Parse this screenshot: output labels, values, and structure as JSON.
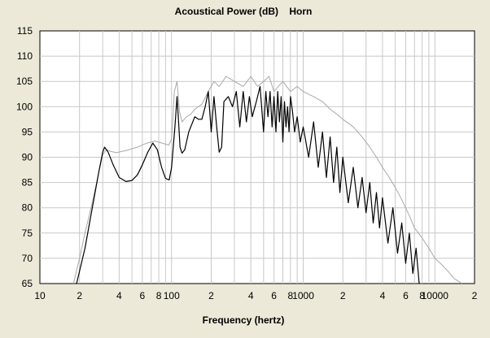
{
  "chart_data": {
    "type": "line",
    "title": "Acoustical Power (dB)    Horn",
    "xlabel": "Frequency (hertz)",
    "ylabel": "",
    "x_scale": "log",
    "xlim": [
      10,
      20000
    ],
    "ylim": [
      65,
      115
    ],
    "grid": true,
    "legend": "none",
    "y_ticks": [
      65,
      70,
      75,
      80,
      85,
      90,
      95,
      100,
      105,
      110,
      115
    ],
    "x_tick_values": [
      10,
      20,
      40,
      60,
      80,
      100,
      200,
      400,
      600,
      800,
      1000,
      2000,
      4000,
      6000,
      8000,
      10000,
      20000
    ],
    "x_tick_labels": [
      "10",
      "2",
      "4",
      "6",
      "8",
      "100",
      "2",
      "4",
      "6",
      "8",
      "1000",
      "2",
      "4",
      "6",
      "8",
      "10000",
      "2"
    ],
    "colors": {
      "background": "#ece9d8",
      "plot": "#ffffff",
      "grid": "#c8c8c8",
      "series_primary": "#000000",
      "series_secondary": "#a8a8a8"
    },
    "series": [
      {
        "role": "primary",
        "color": "#000000",
        "x": [
          19,
          22,
          25,
          28,
          30,
          31,
          33,
          36,
          40,
          45,
          50,
          55,
          60,
          66,
          72,
          78,
          84,
          90,
          96,
          100,
          106,
          110,
          113,
          116,
          120,
          126,
          135,
          150,
          160,
          170,
          180,
          190,
          200,
          210,
          220,
          230,
          240,
          250,
          270,
          290,
          310,
          330,
          350,
          370,
          390,
          410,
          440,
          470,
          500,
          520,
          540,
          560,
          580,
          600,
          620,
          640,
          660,
          680,
          700,
          720,
          740,
          760,
          780,
          800,
          830,
          860,
          900,
          950,
          1000,
          1100,
          1200,
          1300,
          1400,
          1500,
          1600,
          1700,
          1800,
          1900,
          2000,
          2200,
          2400,
          2600,
          2800,
          3000,
          3200,
          3400,
          3600,
          3800,
          4000,
          4400,
          4800,
          5200,
          5600,
          6000,
          6400,
          6800,
          7200,
          7600
        ],
        "y": [
          65,
          72,
          80,
          87,
          91,
          92,
          91,
          88.5,
          86,
          85.2,
          85.4,
          86.5,
          88.5,
          91,
          92.8,
          91.5,
          88,
          85.8,
          85.5,
          88,
          96,
          102,
          97,
          92,
          90.8,
          91.5,
          95,
          98,
          97.5,
          97.5,
          100,
          103,
          95,
          102,
          96,
          91,
          92,
          101,
          102,
          100,
          103,
          96,
          103,
          97,
          102,
          98,
          101,
          104,
          95,
          103,
          98,
          103,
          96,
          102,
          95,
          103,
          97,
          102,
          93,
          101,
          96,
          100,
          95,
          102,
          99,
          95,
          98,
          93,
          96,
          90,
          97,
          88,
          95,
          86,
          94,
          85,
          92,
          83,
          90,
          81,
          88,
          80,
          86,
          79,
          85,
          77,
          83,
          76,
          82,
          73,
          80,
          71,
          77,
          69,
          75,
          67,
          72,
          65
        ]
      },
      {
        "role": "secondary",
        "color": "#a8a8a8",
        "x": [
          18,
          20,
          22,
          25,
          28,
          30,
          32,
          34,
          38,
          45,
          55,
          65,
          75,
          85,
          95,
          100,
          105,
          110,
          115,
          120,
          130,
          140,
          150,
          170,
          190,
          210,
          230,
          260,
          300,
          350,
          400,
          450,
          500,
          550,
          600,
          700,
          800,
          900,
          1000,
          1200,
          1400,
          1600,
          1800,
          2000,
          2400,
          2800,
          3200,
          3600,
          4000,
          4500,
          5000,
          5500,
          6000,
          6500,
          7000,
          7500,
          8000,
          9000,
          10000,
          11000,
          12000,
          13000,
          14000,
          15000,
          16000
        ],
        "y": [
          65,
          70,
          75,
          81,
          87,
          90.5,
          91.5,
          91.2,
          90.9,
          91.3,
          92,
          92.8,
          93.2,
          92.8,
          92.4,
          93.5,
          103,
          105,
          99,
          97,
          98,
          98.5,
          99.5,
          100.5,
          103,
          105,
          104,
          106,
          105,
          104,
          106,
          104,
          105,
          106,
          103,
          105,
          103,
          104,
          103,
          102,
          101,
          99.5,
          98.5,
          97.5,
          96,
          94,
          92,
          90,
          88,
          86,
          84,
          82,
          80,
          78,
          76,
          75,
          74,
          72,
          70,
          69,
          68,
          67,
          66,
          65.5,
          65
        ]
      }
    ]
  }
}
